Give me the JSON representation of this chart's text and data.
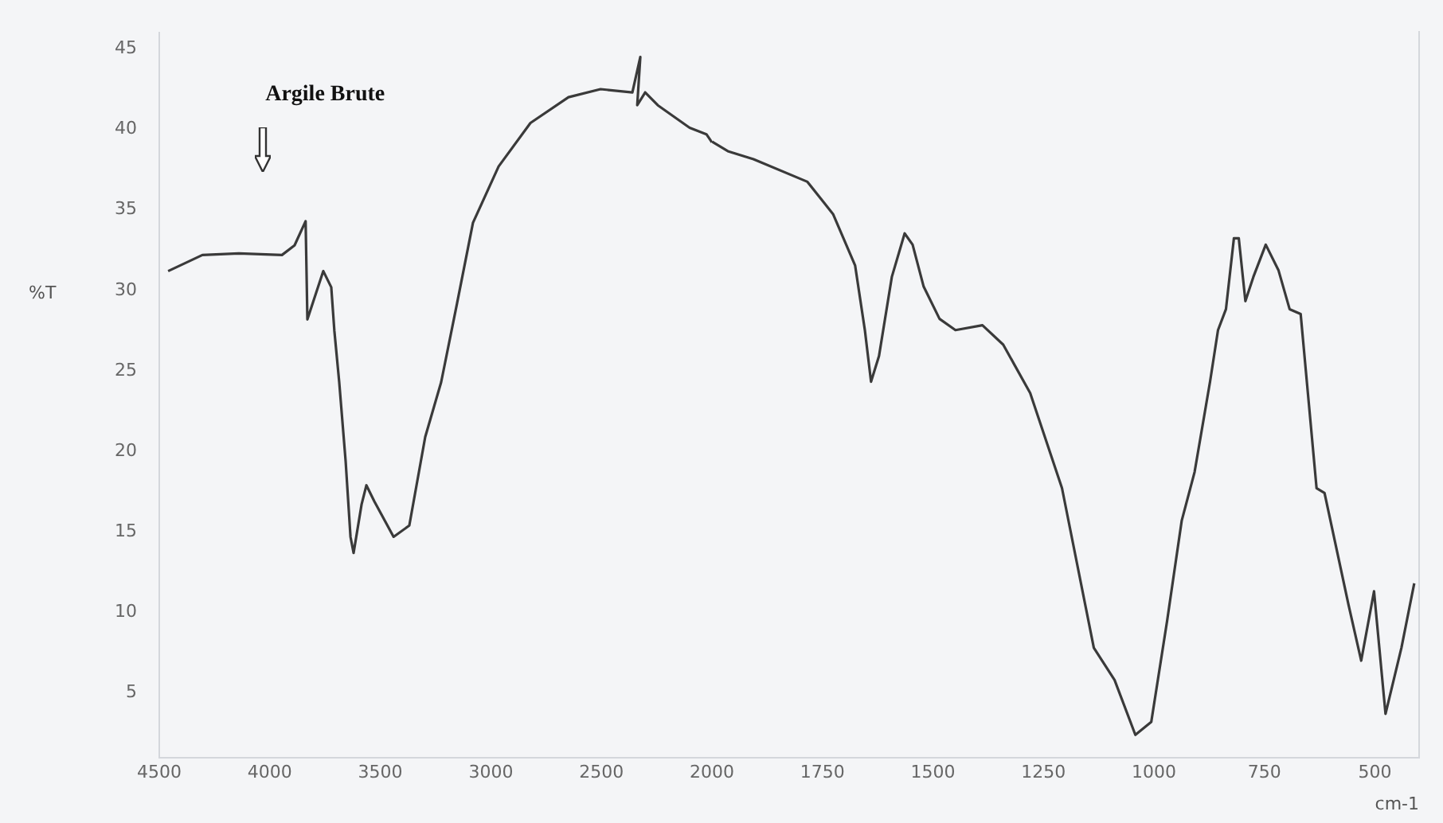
{
  "chart_data": [
    {
      "type": "line",
      "ylabel": "%T",
      "annotations": [
        "Argile Brute"
      ],
      "x": [
        4460,
        4305,
        4140,
        3945,
        3888,
        3838,
        3830,
        3758,
        3722,
        3708,
        3686,
        3657,
        3635,
        3621,
        3585,
        3563,
        3527,
        3440,
        3369,
        3297,
        3225,
        3153,
        3081,
        2965,
        2821,
        2649,
        2504,
        2360,
        2324,
        2338,
        2302,
        2245,
        2101,
        2025,
        2000
      ],
      "series": [
        {
          "color": "#3a3a3a",
          "values": [
            31.2,
            32.2,
            32.3,
            32.2,
            32.8,
            34.3,
            28.2,
            31.2,
            30.2,
            27.5,
            24.3,
            19.4,
            14.7,
            13.7,
            16.7,
            17.9,
            16.9,
            14.7,
            15.4,
            20.9,
            24.3,
            29.2,
            34.2,
            37.7,
            40.4,
            42.0,
            42.5,
            42.3,
            44.5,
            41.5,
            42.3,
            41.5,
            40.1,
            39.7,
            39.2
          ]
        }
      ],
      "xlim": [
        4500,
        2000
      ],
      "xticks": [
        4500,
        4000,
        3500,
        3000,
        2500,
        2000
      ],
      "ylim": [
        1,
        46
      ],
      "yticks": [
        5,
        10,
        15,
        20,
        25,
        30,
        35,
        40,
        45
      ],
      "grid": false,
      "legend": false,
      "marker": "none",
      "line_style": "solid"
    },
    {
      "type": "line",
      "xlabel": "cm-1",
      "x": [
        2000,
        1964,
        1906,
        1784,
        1726,
        1676,
        1654,
        1640,
        1622,
        1593,
        1564,
        1546,
        1521,
        1485,
        1449,
        1388,
        1341,
        1280,
        1208,
        1136,
        1089,
        1042,
        1006,
        970,
        937,
        908,
        873,
        855,
        837,
        819,
        808,
        793,
        775,
        747,
        718,
        693,
        668,
        632,
        614,
        560,
        531,
        502,
        476,
        440,
        411
      ],
      "series": [
        {
          "color": "#3a3a3a",
          "values": [
            39.2,
            38.6,
            38.1,
            36.7,
            34.7,
            31.5,
            27.5,
            24.3,
            25.9,
            30.8,
            33.5,
            32.8,
            30.2,
            28.2,
            27.5,
            27.8,
            26.6,
            23.6,
            17.7,
            7.8,
            5.8,
            2.4,
            3.2,
            9.5,
            15.7,
            18.7,
            24.3,
            27.5,
            28.8,
            33.2,
            33.2,
            29.3,
            30.8,
            32.8,
            31.2,
            28.8,
            28.5,
            17.7,
            17.4,
            10.5,
            7.0,
            11.3,
            3.7,
            7.8,
            11.8
          ]
        }
      ],
      "xlim": [
        2000,
        400
      ],
      "xticks": [
        1750,
        1500,
        1250,
        1000,
        750,
        500
      ],
      "ylim": [
        1,
        46
      ],
      "yticks": [
        5,
        10,
        15,
        20,
        25,
        30,
        35,
        40,
        45
      ],
      "tick_labels": "x",
      "grid": false,
      "legend": false,
      "marker": "none",
      "line_style": "solid"
    }
  ]
}
